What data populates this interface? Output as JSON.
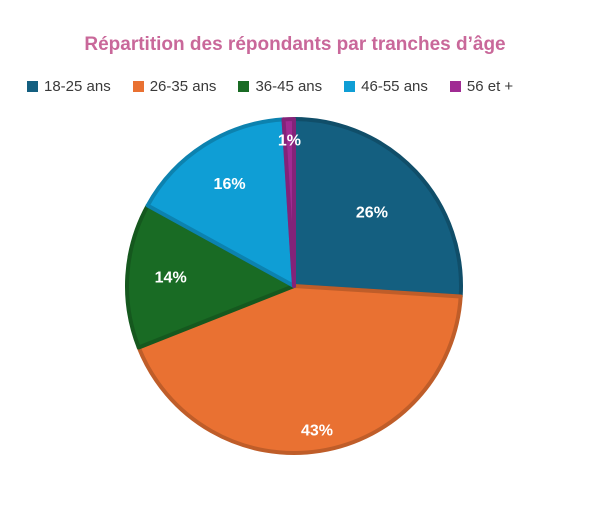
{
  "chart_data": {
    "type": "pie",
    "title": "Répartition des répondants par tranches d’âge",
    "legend_position": "top",
    "slices": [
      {
        "label": "18-25 ans",
        "value": 26,
        "display": "26%",
        "color": "#145f80"
      },
      {
        "label": "26-35 ans",
        "value": 43,
        "display": "43%",
        "color": "#e97132"
      },
      {
        "label": "36-45 ans",
        "value": 14,
        "display": "14%",
        "color": "#196b24"
      },
      {
        "label": "46-55 ans",
        "value": 16,
        "display": "16%",
        "color": "#0f9ed5"
      },
      {
        "label": "56 et +",
        "value": 1,
        "display": "1%",
        "color": "#a02b93"
      }
    ]
  }
}
